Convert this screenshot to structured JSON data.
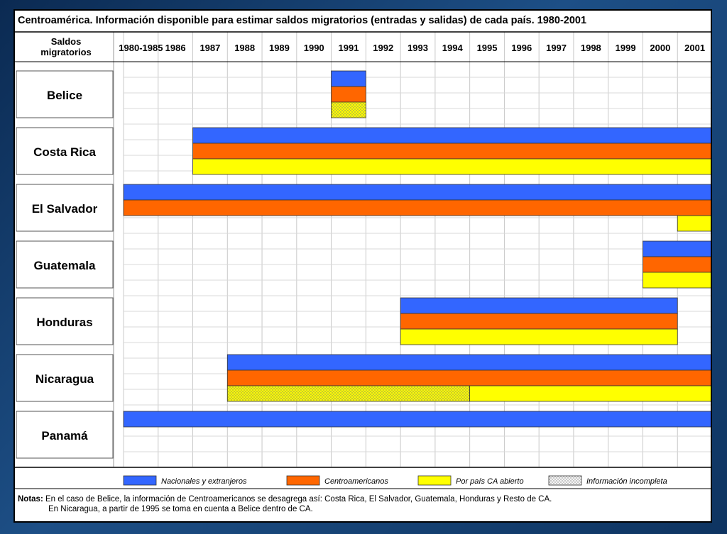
{
  "chart_data": {
    "type": "gantt",
    "title": "Centroamérica. Información disponible para estimar saldos migratorios (entradas y salidas) de cada país. 1980-2001",
    "row_header": "Saldos migratorios",
    "periods": [
      "1980-1985",
      "1986",
      "1987",
      "1988",
      "1989",
      "1990",
      "1991",
      "1992",
      "1993",
      "1994",
      "1995",
      "1996",
      "1997",
      "1998",
      "1999",
      "2000",
      "2001"
    ],
    "countries": [
      {
        "name": "Belice",
        "bars": [
          {
            "series": "Nacionales y extranjeros",
            "start": "1991",
            "end": "1991"
          },
          {
            "series": "Centroamericanos",
            "start": "1991",
            "end": "1991"
          },
          {
            "series": "Información incompleta",
            "start": "1991",
            "end": "1991"
          }
        ]
      },
      {
        "name": "Costa Rica",
        "bars": [
          {
            "series": "Nacionales y extranjeros",
            "start": "1987",
            "end": "2001"
          },
          {
            "series": "Centroamericanos",
            "start": "1987",
            "end": "2001"
          },
          {
            "series": "Por país CA abierto",
            "start": "1987",
            "end": "2001"
          }
        ]
      },
      {
        "name": "El Salvador",
        "bars": [
          {
            "series": "Nacionales y extranjeros",
            "start": "1980-1985",
            "end": "2001"
          },
          {
            "series": "Centroamericanos",
            "start": "1980-1985",
            "end": "2001"
          },
          {
            "series": "Por país CA abierto",
            "start": "2001",
            "end": "2001"
          }
        ]
      },
      {
        "name": "Guatemala",
        "bars": [
          {
            "series": "Nacionales y extranjeros",
            "start": "2000",
            "end": "2001"
          },
          {
            "series": "Centroamericanos",
            "start": "2000",
            "end": "2001"
          },
          {
            "series": "Por país CA abierto",
            "start": "2000",
            "end": "2001"
          }
        ]
      },
      {
        "name": "Honduras",
        "bars": [
          {
            "series": "Nacionales y extranjeros",
            "start": "1993",
            "end": "2000"
          },
          {
            "series": "Centroamericanos",
            "start": "1993",
            "end": "2000"
          },
          {
            "series": "Por país CA abierto",
            "start": "1993",
            "end": "2000"
          }
        ]
      },
      {
        "name": "Nicaragua",
        "bars": [
          {
            "series": "Nacionales y extranjeros",
            "start": "1988",
            "end": "2001"
          },
          {
            "series": "Centroamericanos",
            "start": "1988",
            "end": "2001"
          },
          {
            "series": "Información incompleta",
            "start": "1988",
            "end": "1994"
          },
          {
            "series": "Por país CA abierto",
            "start": "1995",
            "end": "2001"
          }
        ]
      },
      {
        "name": "Panamá",
        "bars": [
          {
            "series": "Nacionales y extranjeros",
            "start": "1980-1985",
            "end": "2001"
          }
        ]
      }
    ],
    "legend": [
      {
        "name": "Nacionales y extranjeros",
        "color": "#3366ff"
      },
      {
        "name": "Centroamericanos",
        "color": "#ff6600"
      },
      {
        "name": "Por país CA abierto",
        "color": "#ffff00"
      },
      {
        "name": "Información incompleta",
        "color": "pattern"
      }
    ],
    "legend_position": "bottom",
    "grid": true
  },
  "notes": {
    "label": "Notas:",
    "line1": "En el caso de Belice, la información de Centroamericanos se desagrega así: Costa Rica, El Salvador, Guatemala, Honduras y Resto de CA.",
    "line2": "En Nicaragua, a partir de 1995 se toma en cuenta a Belice dentro de CA."
  }
}
